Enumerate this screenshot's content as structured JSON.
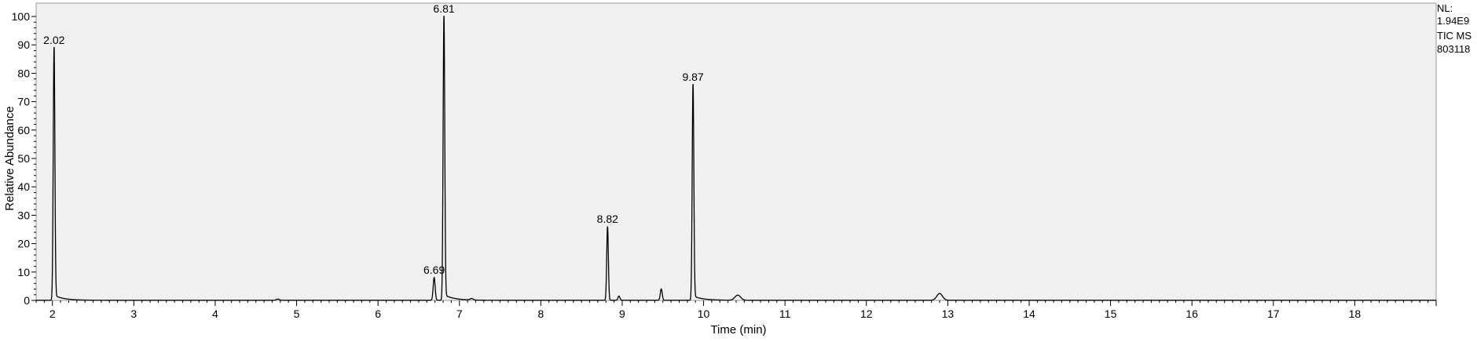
{
  "chart_data": {
    "type": "line",
    "title": "",
    "xlabel": "Time (min)",
    "ylabel": "Relative Abundance",
    "xlim": [
      1.8,
      19.0
    ],
    "ylim": [
      0,
      100
    ],
    "x_ticks": [
      2,
      3,
      4,
      5,
      6,
      7,
      8,
      9,
      10,
      11,
      12,
      13,
      14,
      15,
      16,
      17,
      18
    ],
    "y_ticks": [
      0,
      10,
      20,
      30,
      40,
      50,
      60,
      70,
      80,
      90,
      100
    ],
    "grid": false,
    "plot_background": "#f0f0f0",
    "line_color": "#000000",
    "peaks": [
      {
        "rt": 2.02,
        "height": 89,
        "label": "2.02"
      },
      {
        "rt": 6.69,
        "height": 8,
        "label": "6.69"
      },
      {
        "rt": 6.81,
        "height": 100,
        "label": "6.81"
      },
      {
        "rt": 8.82,
        "height": 26,
        "label": "8.82"
      },
      {
        "rt": 9.87,
        "height": 76,
        "label": "9.87"
      },
      {
        "rt": 8.96,
        "height": 1.5,
        "label": ""
      },
      {
        "rt": 9.48,
        "height": 4,
        "label": ""
      },
      {
        "rt": 10.42,
        "height": 1.8,
        "label": ""
      },
      {
        "rt": 12.9,
        "height": 2.4,
        "label": ""
      },
      {
        "rt": 4.77,
        "height": 0.4,
        "label": ""
      },
      {
        "rt": 7.15,
        "height": 0.5,
        "label": ""
      }
    ],
    "info": {
      "nl_label": "NL:",
      "nl_value": "1.94E9",
      "trace": "TIC  MS",
      "sample": "803118"
    }
  }
}
